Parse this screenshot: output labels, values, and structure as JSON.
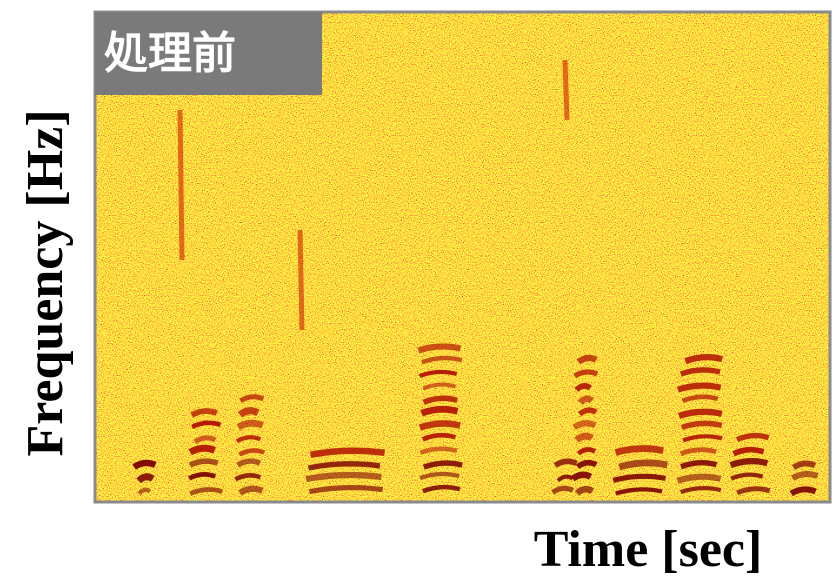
{
  "chart_data": {
    "type": "spectrogram",
    "label": "処理前",
    "xlabel": "Time [sec]",
    "ylabel": "Frequency [Hz]"
  }
}
